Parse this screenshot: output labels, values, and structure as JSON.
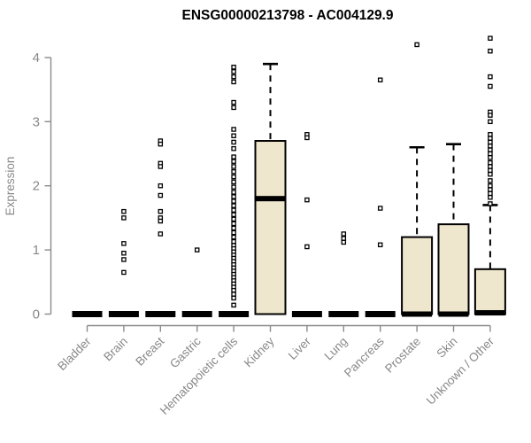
{
  "title": "ENSG00000213798 - AC004129.9",
  "chart_data": {
    "type": "boxplot",
    "title": "ENSG00000213798 - AC004129.9",
    "xlabel": "",
    "ylabel": "Expression",
    "ylim": [
      0,
      4.35
    ],
    "yticks": [
      0,
      1,
      2,
      3,
      4
    ],
    "grid": false,
    "legend": "none",
    "categories": [
      "Bladder",
      "Brain",
      "Breast",
      "Gastric",
      "Hematopoietic cells",
      "Kidney",
      "Liver",
      "Lung",
      "Pancreas",
      "Prostate",
      "Skin",
      "Unknown / Other"
    ],
    "boxes": [
      {
        "category": "Bladder",
        "min": 0,
        "q1": 0,
        "median": 0,
        "q3": 0,
        "max": 0,
        "outliers": []
      },
      {
        "category": "Brain",
        "min": 0,
        "q1": 0,
        "median": 0,
        "q3": 0,
        "max": 0,
        "outliers": [
          1.6,
          1.5,
          1.1,
          0.95,
          0.85,
          0.65
        ]
      },
      {
        "category": "Breast",
        "min": 0,
        "q1": 0,
        "median": 0,
        "q3": 0,
        "max": 0,
        "outliers": [
          2.7,
          2.65,
          2.35,
          2.3,
          2.0,
          1.85,
          1.6,
          1.5,
          1.45,
          1.25
        ]
      },
      {
        "category": "Gastric",
        "min": 0,
        "q1": 0,
        "median": 0,
        "q3": 0,
        "max": 0,
        "outliers": [
          1.0
        ]
      },
      {
        "category": "Hematopoietic cells",
        "min": 0,
        "q1": 0,
        "median": 0,
        "q3": 0,
        "max": 0,
        "outliers": [
          3.85,
          3.78,
          3.7,
          3.62,
          3.3,
          3.22,
          2.88,
          2.78,
          2.68,
          2.58,
          2.45,
          2.38,
          2.3,
          2.22,
          2.14,
          2.06,
          1.98,
          1.9,
          1.83,
          1.76,
          1.69,
          1.62,
          1.55,
          1.48,
          1.41,
          1.34,
          1.27,
          1.2,
          1.13,
          1.07,
          1.02,
          0.97,
          0.92,
          0.87,
          0.82,
          0.77,
          0.72,
          0.67,
          0.62,
          0.57,
          0.52,
          0.47,
          0.42,
          0.37,
          0.31,
          0.25,
          0.14
        ]
      },
      {
        "category": "Kidney",
        "min": 0,
        "q1": 0,
        "median": 1.8,
        "q3": 2.7,
        "max": 3.9,
        "outliers": []
      },
      {
        "category": "Liver",
        "min": 0,
        "q1": 0,
        "median": 0,
        "q3": 0,
        "max": 0,
        "outliers": [
          2.8,
          2.75,
          1.78,
          1.05
        ]
      },
      {
        "category": "Lung",
        "min": 0,
        "q1": 0,
        "median": 0,
        "q3": 0,
        "max": 0,
        "outliers": [
          1.25,
          1.18,
          1.12
        ]
      },
      {
        "category": "Pancreas",
        "min": 0,
        "q1": 0,
        "median": 0,
        "q3": 0,
        "max": 0,
        "outliers": [
          3.65,
          1.65,
          1.08
        ]
      },
      {
        "category": "Prostate",
        "min": 0,
        "q1": 0,
        "median": 0,
        "q3": 1.2,
        "max": 2.6,
        "outliers": [
          4.2
        ]
      },
      {
        "category": "Skin",
        "min": 0,
        "q1": 0,
        "median": 0,
        "q3": 1.4,
        "max": 2.65,
        "outliers": []
      },
      {
        "category": "Unknown / Other",
        "min": 0,
        "q1": 0,
        "median": 0.02,
        "q3": 0.7,
        "max": 1.7,
        "outliers": [
          4.3,
          4.1,
          3.7,
          3.55,
          3.15,
          3.1,
          3.0,
          2.8,
          2.74,
          2.68,
          2.62,
          2.56,
          2.5,
          2.44,
          2.36,
          2.3,
          2.24,
          2.18,
          2.08,
          2.0,
          1.94,
          1.88,
          1.82,
          1.72
        ]
      }
    ],
    "colors": {
      "box_fill": "#EFE7CD",
      "box_stroke": "#000000",
      "median": "#000000",
      "whisker": "#000000",
      "axis": "#8A8A8A",
      "tick_text": "#888888",
      "title_text": "#000000",
      "outlier_fill": "#FFFFFF"
    }
  }
}
